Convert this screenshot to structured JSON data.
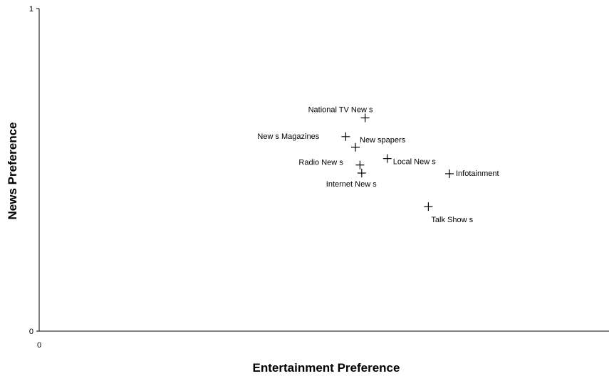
{
  "chart_data": {
    "type": "scatter",
    "xlabel": "Entertainment Preference",
    "ylabel": "News Preference",
    "xlim": [
      0,
      1
    ],
    "ylim": [
      0,
      1
    ],
    "x_ticks": [
      "0"
    ],
    "y_ticks": [
      "0",
      "1"
    ],
    "grid": false,
    "legend": "none",
    "marker": "plus",
    "points": [
      {
        "label": "National TV New s",
        "x": 0.572,
        "y": 0.661
      },
      {
        "label": "New s Magazines",
        "x": 0.538,
        "y": 0.603
      },
      {
        "label": "New spapers",
        "x": 0.555,
        "y": 0.57
      },
      {
        "label": "Local New s",
        "x": 0.611,
        "y": 0.535
      },
      {
        "label": "Radio New s",
        "x": 0.563,
        "y": 0.515
      },
      {
        "label": "Internet New s",
        "x": 0.566,
        "y": 0.49
      },
      {
        "label": "Infotainment",
        "x": 0.72,
        "y": 0.488
      },
      {
        "label": "Talk Show s",
        "x": 0.683,
        "y": 0.386
      }
    ]
  }
}
